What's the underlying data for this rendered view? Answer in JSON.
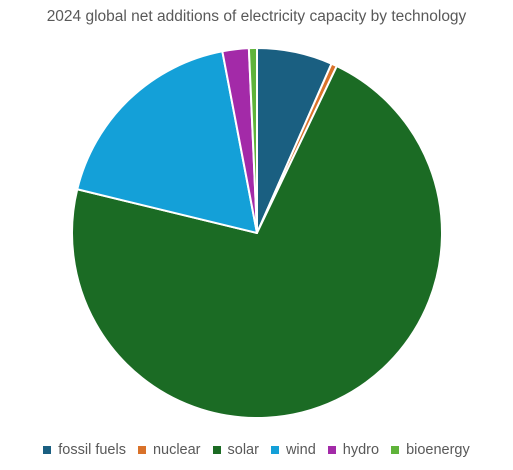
{
  "chart_data": {
    "type": "pie",
    "title": "2024 global net additions of electricity capacity by technology",
    "categories": [
      "fossil fuels",
      "nuclear",
      "solar",
      "wind",
      "hydro",
      "bioenergy"
    ],
    "values": [
      6.6,
      0.5,
      71.7,
      18.2,
      2.3,
      0.7
    ],
    "unit": "%",
    "colors": [
      "#1a5f81",
      "#d9722a",
      "#1b6b24",
      "#14a0d8",
      "#a32aa8",
      "#5fb33a"
    ],
    "start_angle_deg": 0,
    "direction": "clockwise",
    "legend_position": "bottom",
    "slice_border_color": "#ffffff"
  }
}
